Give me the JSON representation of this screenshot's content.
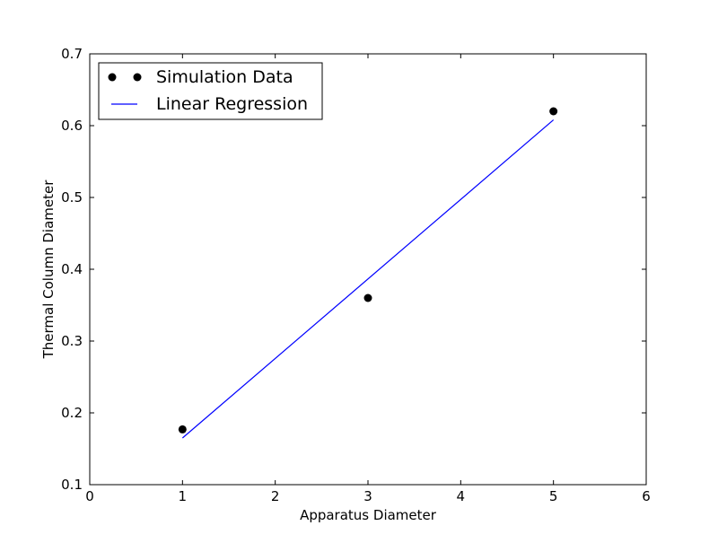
{
  "chart_data": {
    "type": "scatter",
    "title": "",
    "xlabel": "Apparatus Diameter",
    "ylabel": "Thermal Column Diameter",
    "xlim": [
      0,
      6
    ],
    "ylim": [
      0.1,
      0.7
    ],
    "xticks": [
      0,
      1,
      2,
      3,
      4,
      5,
      6
    ],
    "yticks": [
      0.1,
      0.2,
      0.3,
      0.4,
      0.5,
      0.6,
      0.7
    ],
    "grid": false,
    "legend_position": "top-left",
    "series": [
      {
        "name": "Simulation Data",
        "kind": "markers",
        "color": "#000000",
        "x": [
          1,
          3,
          5
        ],
        "y": [
          0.177,
          0.36,
          0.62
        ]
      },
      {
        "name": "Linear Regression",
        "kind": "line",
        "color": "#0000ff",
        "x": [
          1,
          5
        ],
        "y": [
          0.165,
          0.608
        ]
      }
    ]
  }
}
